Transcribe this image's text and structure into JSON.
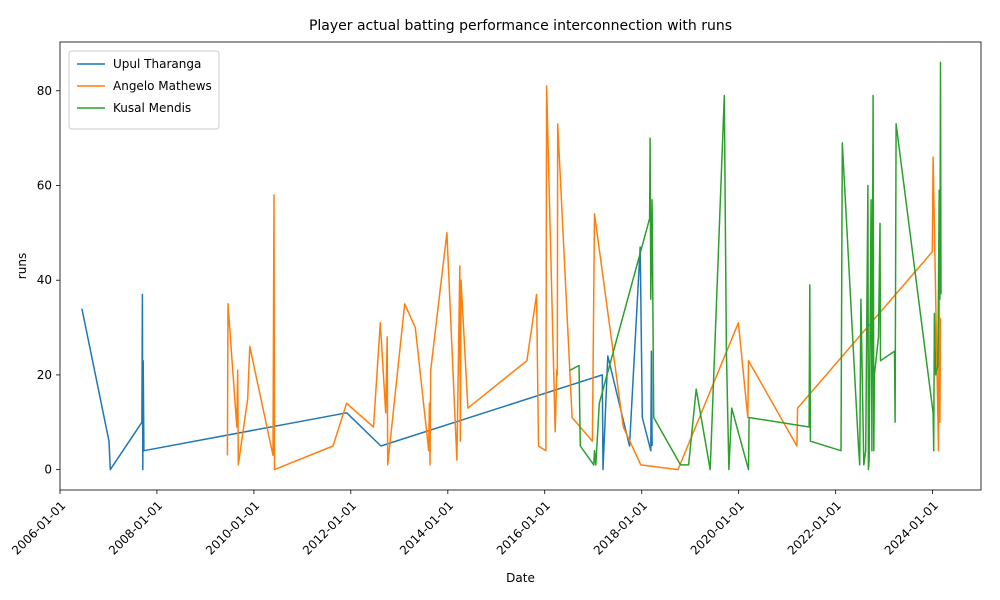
{
  "chart_data": {
    "type": "line",
    "title": "Player actual batting performance interconnection with runs",
    "xlabel": "Date",
    "ylabel": "runs",
    "xlim": [
      "2006-01-01",
      "2024-12-31"
    ],
    "ylim": [
      -4.3,
      90.3
    ],
    "x_ticks": [
      "2006-01-01",
      "2008-01-01",
      "2010-01-01",
      "2012-01-01",
      "2014-01-01",
      "2016-01-01",
      "2018-01-01",
      "2020-01-01",
      "2022-01-01",
      "2024-01-01"
    ],
    "y_ticks": [
      0,
      20,
      40,
      60,
      80
    ],
    "grid": false,
    "legend_position": "top-left",
    "series": [
      {
        "name": "Upul Tharanga",
        "color": "#1f77b4",
        "points": [
          [
            "2006-06-15",
            34
          ],
          [
            "2007-01-05",
            6
          ],
          [
            "2007-01-15",
            0
          ],
          [
            "2007-09-10",
            10
          ],
          [
            "2007-09-14",
            37
          ],
          [
            "2007-09-17",
            0
          ],
          [
            "2007-09-20",
            23
          ],
          [
            "2007-09-25",
            4
          ],
          [
            "2011-12-01",
            12
          ],
          [
            "2012-08-15",
            5
          ],
          [
            "2017-03-10",
            20
          ],
          [
            "2017-03-15",
            0
          ],
          [
            "2017-04-20",
            24
          ],
          [
            "2017-10-01",
            5
          ],
          [
            "2017-12-20",
            47
          ],
          [
            "2018-01-05",
            11
          ],
          [
            "2018-03-10",
            4
          ],
          [
            "2018-03-15",
            25
          ],
          [
            "2018-03-20",
            5
          ]
        ]
      },
      {
        "name": "Angelo Mathews",
        "color": "#ff7f0e",
        "points": [
          [
            "2009-06-15",
            3
          ],
          [
            "2009-06-20",
            35
          ],
          [
            "2009-08-25",
            9
          ],
          [
            "2009-09-01",
            21
          ],
          [
            "2009-09-05",
            1
          ],
          [
            "2009-11-15",
            15
          ],
          [
            "2009-12-01",
            26
          ],
          [
            "2010-05-25",
            3
          ],
          [
            "2010-06-01",
            58
          ],
          [
            "2010-06-05",
            0
          ],
          [
            "2011-08-20",
            5
          ],
          [
            "2011-11-30",
            14
          ],
          [
            "2012-06-20",
            9
          ],
          [
            "2012-08-10",
            31
          ],
          [
            "2012-09-20",
            12
          ],
          [
            "2012-10-01",
            28
          ],
          [
            "2012-10-05",
            1
          ],
          [
            "2013-02-10",
            35
          ],
          [
            "2013-05-01",
            30
          ],
          [
            "2013-08-10",
            4
          ],
          [
            "2013-08-15",
            14
          ],
          [
            "2013-08-20",
            1
          ],
          [
            "2013-08-25",
            21
          ],
          [
            "2013-12-25",
            50
          ],
          [
            "2014-03-10",
            2
          ],
          [
            "2014-04-01",
            43
          ],
          [
            "2014-04-05",
            6
          ],
          [
            "2014-04-10",
            40
          ],
          [
            "2014-06-01",
            13
          ],
          [
            "2015-08-20",
            23
          ],
          [
            "2015-11-01",
            37
          ],
          [
            "2015-11-15",
            5
          ],
          [
            "2016-01-10",
            4
          ],
          [
            "2016-01-15",
            81
          ],
          [
            "2016-03-20",
            8
          ],
          [
            "2016-04-01",
            21
          ],
          [
            "2016-04-05",
            20
          ],
          [
            "2016-04-08",
            73
          ],
          [
            "2016-07-25",
            11
          ],
          [
            "2016-12-25",
            6
          ],
          [
            "2017-01-10",
            54
          ],
          [
            "2017-08-15",
            9
          ],
          [
            "2017-12-25",
            1
          ],
          [
            "2018-10-01",
            0
          ],
          [
            "2019-12-30",
            31
          ],
          [
            "2020-03-10",
            11
          ],
          [
            "2020-03-15",
            23
          ],
          [
            "2021-03-15",
            5
          ],
          [
            "2021-03-20",
            13
          ],
          [
            "2023-12-30",
            46
          ],
          [
            "2024-01-05",
            66
          ],
          [
            "2024-02-15",
            4
          ],
          [
            "2024-02-20",
            42
          ],
          [
            "2024-02-25",
            10
          ],
          [
            "2024-03-01",
            32
          ]
        ]
      },
      {
        "name": "Kusal Mendis",
        "color": "#2ca02c",
        "points": [
          [
            "2016-07-10",
            21
          ],
          [
            "2016-09-15",
            22
          ],
          [
            "2016-09-25",
            5
          ],
          [
            "2017-01-05",
            1
          ],
          [
            "2017-01-10",
            4
          ],
          [
            "2017-01-20",
            1
          ],
          [
            "2017-02-15",
            14
          ],
          [
            "2018-03-01",
            53
          ],
          [
            "2018-03-05",
            70
          ],
          [
            "2018-03-10",
            36
          ],
          [
            "2018-03-20",
            57
          ],
          [
            "2018-04-01",
            11
          ],
          [
            "2018-10-20",
            1
          ],
          [
            "2018-12-20",
            1
          ],
          [
            "2019-02-15",
            17
          ],
          [
            "2019-06-01",
            0
          ],
          [
            "2019-09-15",
            79
          ],
          [
            "2019-10-01",
            25
          ],
          [
            "2019-10-20",
            0
          ],
          [
            "2019-11-10",
            13
          ],
          [
            "2020-03-15",
            0
          ],
          [
            "2020-03-20",
            11
          ],
          [
            "2021-06-15",
            9
          ],
          [
            "2021-06-20",
            39
          ],
          [
            "2021-06-25",
            6
          ],
          [
            "2022-02-10",
            4
          ],
          [
            "2022-02-20",
            69
          ],
          [
            "2022-06-20",
            6
          ],
          [
            "2022-07-01",
            1
          ],
          [
            "2022-07-10",
            36
          ],
          [
            "2022-08-01",
            1
          ],
          [
            "2022-08-15",
            4
          ],
          [
            "2022-09-01",
            60
          ],
          [
            "2022-09-05",
            0
          ],
          [
            "2022-09-10",
            2
          ],
          [
            "2022-09-25",
            57
          ],
          [
            "2022-10-01",
            4
          ],
          [
            "2022-10-10",
            79
          ],
          [
            "2022-10-15",
            4
          ],
          [
            "2022-10-20",
            20
          ],
          [
            "2022-11-20",
            28
          ],
          [
            "2022-12-01",
            52
          ],
          [
            "2022-12-05",
            23
          ],
          [
            "2023-03-20",
            25
          ],
          [
            "2023-03-25",
            10
          ],
          [
            "2023-04-01",
            73
          ],
          [
            "2024-01-05",
            12
          ],
          [
            "2024-01-10",
            4
          ],
          [
            "2024-01-15",
            33
          ],
          [
            "2024-01-25",
            20
          ],
          [
            "2024-02-10",
            22
          ],
          [
            "2024-02-20",
            59
          ],
          [
            "2024-02-25",
            36
          ],
          [
            "2024-03-01",
            86
          ],
          [
            "2024-03-05",
            37
          ]
        ]
      }
    ]
  }
}
